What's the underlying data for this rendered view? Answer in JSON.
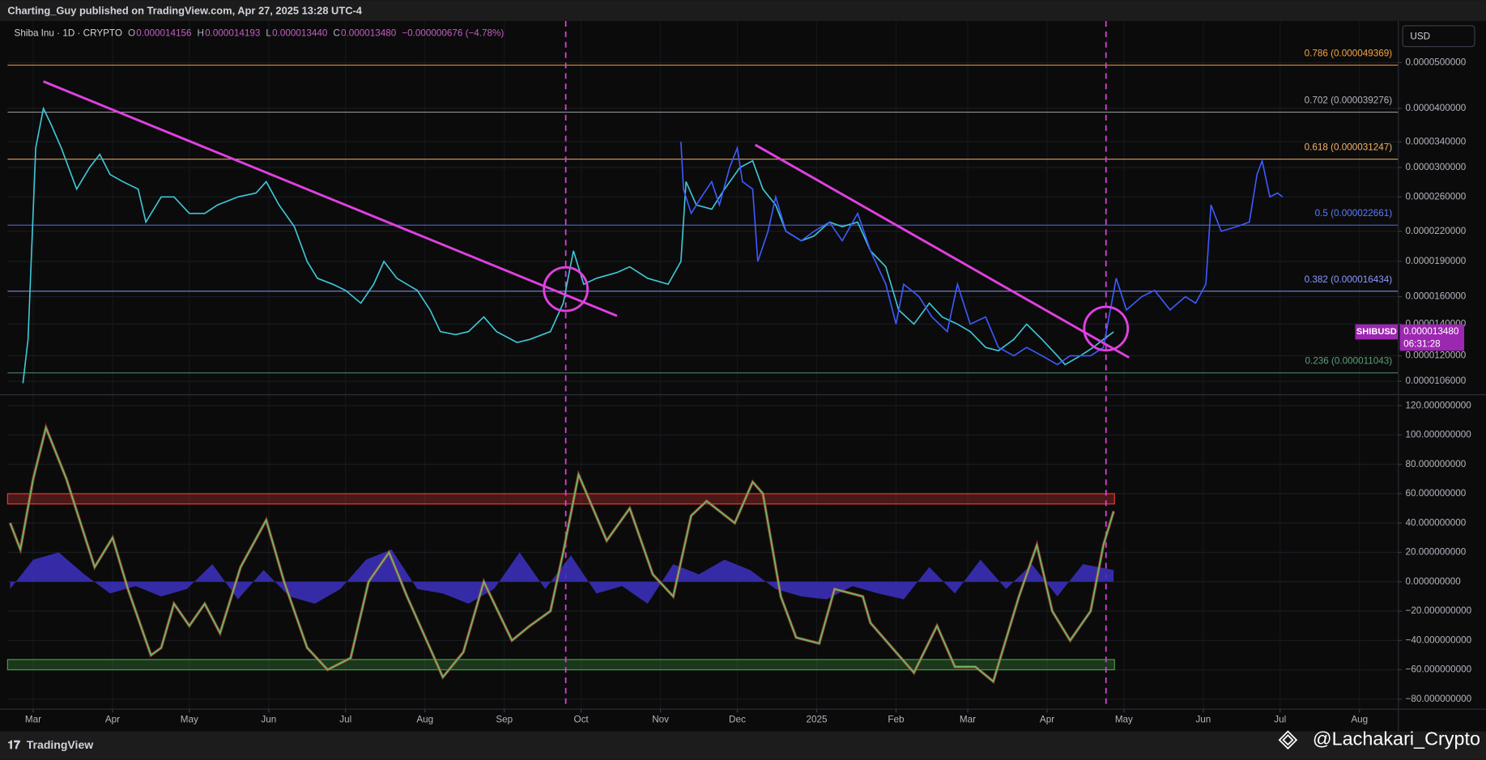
{
  "header": {
    "text": "Charting_Guy published on TradingView.com, Apr 27, 2025 13:28 UTC-4"
  },
  "legend": {
    "symbol": "Shiba Inu · 1D · CRYPTO",
    "ohlc": [
      {
        "label": "O",
        "value": "0.000014156"
      },
      {
        "label": "H",
        "value": "0.000014193"
      },
      {
        "label": "L",
        "value": "0.000013440"
      },
      {
        "label": "C",
        "value": "0.000013480"
      }
    ],
    "change": "−0.000000676 (−4.78%)"
  },
  "currency": "USD",
  "price_badge": {
    "price": "0.000013480",
    "countdown": "06:31:28"
  },
  "footer": {
    "brand": "TradingView",
    "watermark": "@Lachakari_Crypto"
  },
  "chart_data": [
    {
      "type": "line",
      "log_scale": true,
      "grid": true,
      "xlim": [
        -10,
        533
      ],
      "ylim": [
        1e-05,
        6.12e-05
      ],
      "xticks": [
        {
          "value": 0,
          "label": "Mar"
        },
        {
          "value": 31,
          "label": "Apr"
        },
        {
          "value": 61,
          "label": "May"
        },
        {
          "value": 92,
          "label": "Jun"
        },
        {
          "value": 122,
          "label": "Jul"
        },
        {
          "value": 153,
          "label": "Aug"
        },
        {
          "value": 184,
          "label": "Sep"
        },
        {
          "value": 214,
          "label": "Oct"
        },
        {
          "value": 245,
          "label": "Nov"
        },
        {
          "value": 275,
          "label": "Dec"
        },
        {
          "value": 306,
          "label": "2025"
        },
        {
          "value": 337,
          "label": "Feb"
        },
        {
          "value": 365,
          "label": "Mar"
        },
        {
          "value": 396,
          "label": "Apr"
        },
        {
          "value": 426,
          "label": "May"
        },
        {
          "value": 457,
          "label": "Jun"
        },
        {
          "value": 487,
          "label": "Jul"
        },
        {
          "value": 518,
          "label": "Aug"
        }
      ],
      "yticks": [
        {
          "value": 5e-05,
          "label": "0.0000500000"
        },
        {
          "value": 4e-05,
          "label": "0.0000400000"
        },
        {
          "value": 3.4e-05,
          "label": "0.0000340000"
        },
        {
          "value": 3e-05,
          "label": "0.0000300000"
        },
        {
          "value": 2.6e-05,
          "label": "0.0000260000"
        },
        {
          "value": 2.2e-05,
          "label": "0.0000220000"
        },
        {
          "value": 1.9e-05,
          "label": "0.0000190000"
        },
        {
          "value": 1.6e-05,
          "label": "0.0000160000"
        },
        {
          "value": 1.4e-05,
          "label": "0.0000140000"
        },
        {
          "value": 1.2e-05,
          "label": "0.0000120000"
        },
        {
          "value": 1.06e-05,
          "label": "0.0000106000"
        }
      ],
      "fib_levels": [
        {
          "value": 4.9369e-05,
          "label": "0.786 (0.000049369)",
          "color": "#f7a440"
        },
        {
          "value": 3.9276e-05,
          "label": "0.702 (0.000039276)",
          "color": "#b2b5be"
        },
        {
          "value": 3.1247e-05,
          "label": "0.618 (0.000031247)",
          "color": "#f2b46e"
        },
        {
          "value": 2.2661e-05,
          "label": "0.5 (0.000022661)",
          "color": "#5b7bff"
        },
        {
          "value": 1.6434e-05,
          "label": "0.382 (0.000016434)",
          "color": "#8a98ff"
        },
        {
          "value": 1.1043e-05,
          "label": "0.236 (0.000011043)",
          "color": "#5e9e7a"
        }
      ],
      "series": [
        {
          "name": "SHIBUSD",
          "color": "#3fc6d6",
          "x": [
            -4,
            -2,
            1,
            4,
            7,
            11,
            17,
            22,
            26,
            30,
            35,
            41,
            44,
            50,
            55,
            61,
            67,
            72,
            80,
            87,
            91,
            96,
            102,
            107,
            111,
            117,
            122,
            128,
            133,
            137,
            142,
            150,
            155,
            159,
            165,
            170,
            176,
            181,
            189,
            194,
            202,
            207,
            211,
            215,
            220,
            228,
            233,
            240,
            248,
            253,
            255,
            259,
            265,
            270,
            276,
            281,
            285,
            290,
            294,
            300,
            305,
            311,
            316,
            322,
            327,
            333,
            338,
            344,
            350,
            355,
            361,
            366,
            372,
            377,
            383,
            388,
            394,
            400,
            403,
            409,
            414,
            418,
            422
          ],
          "values": [
            1.05e-05,
            1.3e-05,
            3.3e-05,
            4e-05,
            3.7e-05,
            3.3e-05,
            2.7e-05,
            3e-05,
            3.2e-05,
            2.9e-05,
            2.8e-05,
            2.7e-05,
            2.3e-05,
            2.6e-05,
            2.6e-05,
            2.4e-05,
            2.4e-05,
            2.5e-05,
            2.6e-05,
            2.65e-05,
            2.8e-05,
            2.5e-05,
            2.25e-05,
            1.9e-05,
            1.75e-05,
            1.7e-05,
            1.65e-05,
            1.55e-05,
            1.7e-05,
            1.9e-05,
            1.75e-05,
            1.65e-05,
            1.5e-05,
            1.35e-05,
            1.33e-05,
            1.35e-05,
            1.45e-05,
            1.35e-05,
            1.28e-05,
            1.3e-05,
            1.35e-05,
            1.55e-05,
            2e-05,
            1.7e-05,
            1.75e-05,
            1.8e-05,
            1.85e-05,
            1.75e-05,
            1.7e-05,
            1.9e-05,
            2.8e-05,
            2.5e-05,
            2.45e-05,
            2.7e-05,
            3e-05,
            3.1e-05,
            2.7e-05,
            2.5e-05,
            2.2e-05,
            2.1e-05,
            2.15e-05,
            2.3e-05,
            2.25e-05,
            2.3e-05,
            2e-05,
            1.85e-05,
            1.5e-05,
            1.4e-05,
            1.55e-05,
            1.45e-05,
            1.4e-05,
            1.35e-05,
            1.25e-05,
            1.23e-05,
            1.3e-05,
            1.4e-05,
            1.3e-05,
            1.2e-05,
            1.15e-05,
            1.2e-05,
            1.25e-05,
            1.3e-05,
            1.348e-05
          ]
        },
        {
          "color": "#3d5afe",
          "x": [
            253,
            254,
            257,
            261,
            265,
            268,
            272,
            275,
            277,
            281,
            283,
            287,
            290,
            294,
            300,
            305,
            311,
            316,
            322,
            327,
            333,
            337,
            340,
            346,
            351,
            357,
            361,
            366,
            372,
            377,
            383,
            388,
            394,
            400,
            405,
            413,
            418,
            423,
            427,
            433,
            438,
            444,
            450,
            454,
            458,
            460,
            464,
            470,
            475,
            478,
            480,
            483,
            486,
            488
          ],
          "values": [
            3.4e-05,
            2.7e-05,
            2.4e-05,
            2.6e-05,
            2.8e-05,
            2.5e-05,
            3e-05,
            3.3e-05,
            2.8e-05,
            2.7e-05,
            1.9e-05,
            2.2e-05,
            2.6e-05,
            2.2e-05,
            2.1e-05,
            2.2e-05,
            2.3e-05,
            2.1e-05,
            2.4e-05,
            2e-05,
            1.7e-05,
            1.4e-05,
            1.7e-05,
            1.6e-05,
            1.45e-05,
            1.35e-05,
            1.7e-05,
            1.4e-05,
            1.45e-05,
            1.25e-05,
            1.2e-05,
            1.25e-05,
            1.2e-05,
            1.15e-05,
            1.2e-05,
            1.2e-05,
            1.25e-05,
            1.75e-05,
            1.5e-05,
            1.6e-05,
            1.65e-05,
            1.5e-05,
            1.6e-05,
            1.55e-05,
            1.7e-05,
            2.5e-05,
            2.2e-05,
            2.25e-05,
            2.3e-05,
            2.9e-05,
            3.1e-05,
            2.6e-05,
            2.65e-05,
            2.6e-05
          ]
        }
      ],
      "trendlines": [
        {
          "color": "#e040e0",
          "x": [
            4,
            228
          ],
          "y": [
            4.56e-05,
            1.457e-05
          ]
        },
        {
          "color": "#e040e0",
          "x": [
            282,
            428
          ],
          "y": [
            3.35e-05,
            1.19e-05
          ]
        }
      ],
      "circles": [
        {
          "x": 208,
          "y": 1.66e-05
        },
        {
          "x": 419,
          "y": 1.37e-05
        }
      ],
      "vlines": {
        "color": "#e040e0",
        "x": [
          208,
          419
        ]
      }
    },
    {
      "type": "line",
      "grid": true,
      "xlim": [
        -10,
        533
      ],
      "ylim": [
        -86.5,
        126.5
      ],
      "yticks": [
        {
          "value": 120,
          "label": "120.000000000"
        },
        {
          "value": 100,
          "label": "100.000000000"
        },
        {
          "value": 80,
          "label": "80.000000000"
        },
        {
          "value": 60,
          "label": "60.000000000"
        },
        {
          "value": 40,
          "label": "40.000000000"
        },
        {
          "value": 20,
          "label": "20.000000000"
        },
        {
          "value": 0,
          "label": "0.000000000"
        },
        {
          "value": -20,
          "label": "−20.000000000"
        },
        {
          "value": -40,
          "label": "−40.000000000"
        },
        {
          "value": -60,
          "label": "−60.000000000"
        },
        {
          "value": -80,
          "label": "−80.000000000"
        }
      ],
      "bands": [
        {
          "range": [
            53,
            60
          ],
          "color": "#e53935"
        },
        {
          "range": [
            -60,
            -53
          ],
          "color": "#43a047"
        }
      ],
      "series": [
        {
          "type": "area",
          "color": "#3b2fb8",
          "x": [
            -9,
            0,
            10,
            20,
            30,
            40,
            50,
            60,
            70,
            80,
            90,
            100,
            110,
            120,
            130,
            140,
            150,
            160,
            170,
            180,
            190,
            200,
            210,
            220,
            230,
            240,
            250,
            260,
            270,
            280,
            290,
            300,
            310,
            320,
            330,
            340,
            350,
            360,
            370,
            380,
            390,
            400,
            410,
            422
          ],
          "values": [
            -5,
            15,
            20,
            5,
            -8,
            -3,
            -10,
            -5,
            12,
            -12,
            8,
            -10,
            -15,
            -5,
            15,
            22,
            -5,
            -8,
            -15,
            -5,
            20,
            -5,
            18,
            -8,
            -3,
            -15,
            12,
            5,
            15,
            8,
            -5,
            -10,
            -12,
            -3,
            -8,
            -12,
            10,
            -8,
            15,
            -5,
            12,
            -10,
            12,
            8
          ]
        },
        {
          "color": "#66bb6a",
          "x": [
            -9,
            -5,
            0,
            5,
            13,
            24,
            31,
            37,
            46,
            50,
            55,
            61,
            67,
            73,
            81,
            91,
            98,
            107,
            115,
            124,
            131,
            139,
            146,
            160,
            168,
            176,
            187,
            194,
            202,
            207,
            213,
            224,
            233,
            242,
            250,
            257,
            263,
            274,
            281,
            285,
            292,
            298,
            307,
            313,
            324,
            327,
            337,
            344,
            353,
            360,
            368,
            375,
            385,
            392,
            398,
            405,
            413,
            418,
            422
          ],
          "values": [
            40,
            22,
            70,
            105,
            70,
            10,
            30,
            -5,
            -50,
            -45,
            -15,
            -30,
            -15,
            -35,
            10,
            42,
            0,
            -45,
            -60,
            -52,
            0,
            20,
            -10,
            -65,
            -48,
            0,
            -40,
            -30,
            -20,
            20,
            73,
            28,
            50,
            5,
            -10,
            45,
            55,
            40,
            68,
            60,
            -10,
            -38,
            -42,
            -5,
            -10,
            -28,
            -48,
            -62,
            -30,
            -58,
            -58,
            -68,
            -10,
            25,
            -20,
            -40,
            -20,
            25,
            48
          ]
        }
      ]
    }
  ]
}
